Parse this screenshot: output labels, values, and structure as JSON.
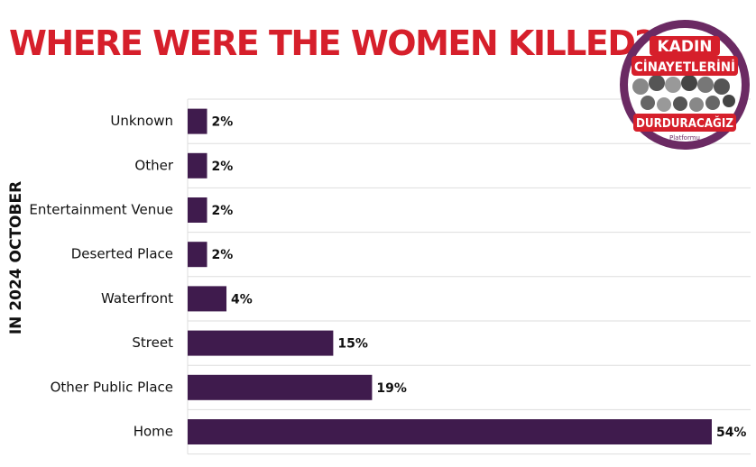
{
  "header": {
    "title": "WHERE WERE THE WOMEN KILLED?",
    "side_label": "IN 2024 OCTOBER"
  },
  "logo": {
    "line1": "KADIN",
    "line2": "CİNAYETLERİNİ",
    "line3": "DURDURACAĞIZ",
    "line4": "Platformu",
    "colors": {
      "ring": "#6b2a63",
      "red": "#d61f2b"
    }
  },
  "colors": {
    "bar": "#3f1b4d",
    "title": "#d61f2b",
    "grid": "#dddddd"
  },
  "chart_data": {
    "type": "bar",
    "orientation": "horizontal",
    "categories": [
      "Unknown",
      "Other",
      "Entertainment Venue",
      "Deserted Place",
      "Waterfront",
      "Street",
      "Other Public Place",
      "Home"
    ],
    "values": [
      2,
      2,
      2,
      2,
      4,
      15,
      19,
      54
    ],
    "value_labels": [
      "2%",
      "2%",
      "2%",
      "2%",
      "4%",
      "15%",
      "19%",
      "54%"
    ],
    "unit": "%",
    "xlim": [
      0,
      58
    ],
    "grid": true
  }
}
